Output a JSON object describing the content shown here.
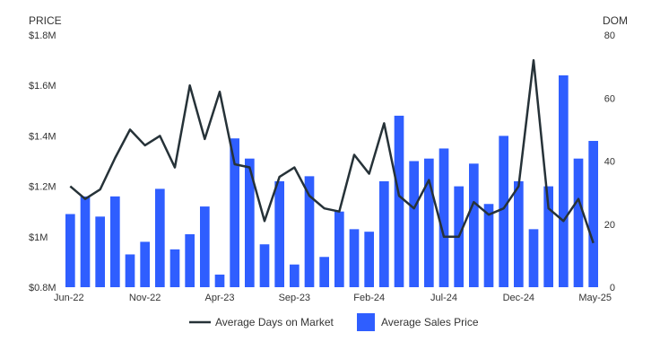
{
  "chart_data": {
    "type": "bar",
    "title": "",
    "y_left_label": "PRICE",
    "y_right_label": "DOM",
    "y_left_ticks": [
      "$0.8M",
      "$1M",
      "$1.2M",
      "$1.4M",
      "$1.6M",
      "$1.8M"
    ],
    "y_left_tick_values": [
      0.8,
      1.0,
      1.2,
      1.4,
      1.6,
      1.8
    ],
    "y_right_ticks": [
      "0",
      "20",
      "40",
      "60",
      "80"
    ],
    "y_right_tick_values": [
      0,
      20,
      40,
      60,
      80
    ],
    "ylim_left": [
      0.8,
      1.8
    ],
    "ylim_right": [
      0,
      80
    ],
    "x_tick_labels": [
      "Jun-22",
      "Nov-22",
      "Apr-23",
      "Sep-23",
      "Feb-24",
      "Jul-24",
      "Dec-24",
      "May-25"
    ],
    "categories": [
      "Jun-22",
      "Jul-22",
      "Aug-22",
      "Sep-22",
      "Oct-22",
      "Nov-22",
      "Dec-22",
      "Jan-23",
      "Feb-23",
      "Mar-23",
      "Apr-23",
      "May-23",
      "Jun-23",
      "Jul-23",
      "Aug-23",
      "Sep-23",
      "Oct-23",
      "Nov-23",
      "Dec-23",
      "Jan-24",
      "Feb-24",
      "Mar-24",
      "Apr-24",
      "May-24",
      "Jun-24",
      "Jul-24",
      "Aug-24",
      "Sep-24",
      "Oct-24",
      "Nov-24",
      "Dec-24",
      "Jan-25",
      "Feb-25",
      "Mar-25",
      "Apr-25",
      "May-25"
    ],
    "legend_position": "bottom",
    "grid": false,
    "series": [
      {
        "name": "Average Days on Market",
        "type": "line",
        "axis": "right",
        "color": "#263238",
        "values": [
          32,
          28,
          31,
          41,
          50,
          45,
          48,
          38,
          64,
          47,
          62,
          39,
          38,
          21,
          35,
          38,
          29,
          25,
          24,
          42,
          36,
          52,
          29,
          25,
          34,
          16,
          16,
          27,
          23,
          25,
          32,
          72,
          25,
          21,
          28,
          14
        ]
      },
      {
        "name": "Average Sales Price",
        "type": "bar",
        "axis": "left",
        "color": "#2f5eff",
        "values": [
          1.09,
          1.16,
          1.08,
          1.16,
          0.93,
          0.98,
          1.19,
          0.95,
          1.01,
          1.12,
          0.85,
          1.39,
          1.31,
          0.97,
          1.22,
          0.89,
          1.24,
          0.92,
          1.1,
          1.03,
          1.02,
          1.22,
          1.48,
          1.3,
          1.31,
          1.35,
          1.2,
          1.29,
          1.13,
          1.4,
          1.22,
          1.03,
          1.2,
          1.64,
          1.31,
          1.38
        ]
      }
    ]
  }
}
